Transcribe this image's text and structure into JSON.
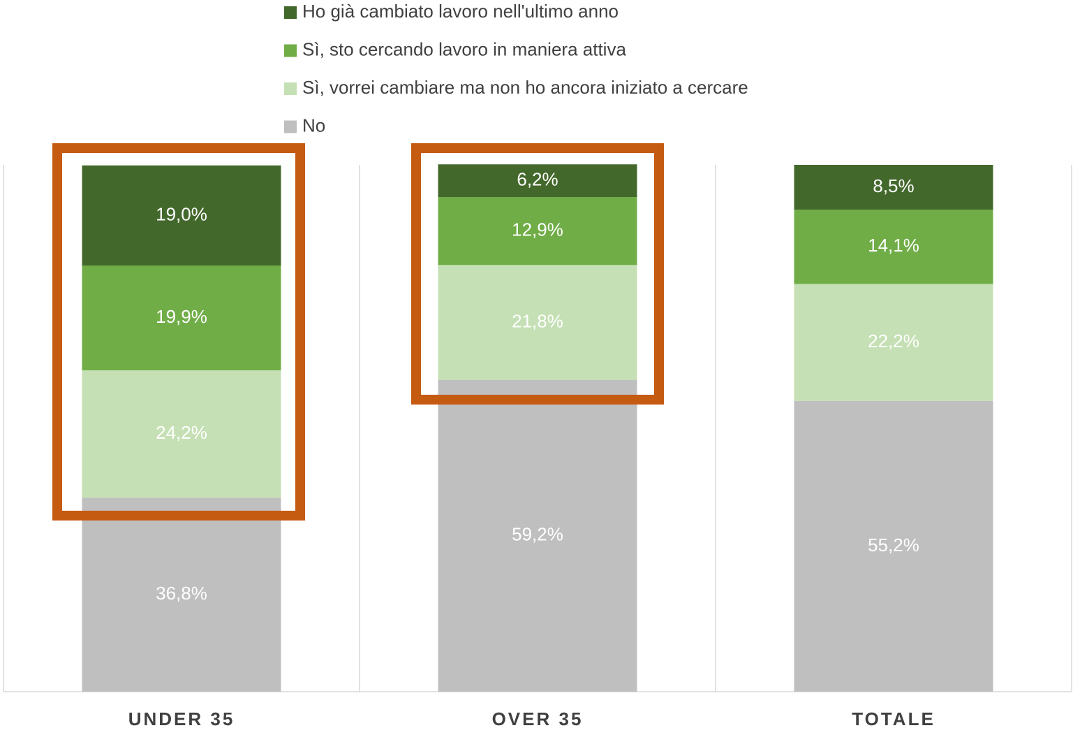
{
  "chart_data": {
    "type": "stacked_bar",
    "categories": [
      "UNDER 35",
      "OVER 35",
      "TOTALE"
    ],
    "ylim": [
      0,
      100
    ],
    "series": [
      {
        "name": "No",
        "color": "#bfbfbf",
        "values": [
          36.8,
          59.2,
          55.2
        ],
        "value_labels": [
          "36,8%",
          "59,2%",
          "55,2%"
        ]
      },
      {
        "name": "Sì, vorrei cambiare ma non ho ancora iniziato a cercare",
        "color": "#c5e0b4",
        "values": [
          24.2,
          21.8,
          22.2
        ],
        "value_labels": [
          "24,2%",
          "21,8%",
          "22,2%"
        ]
      },
      {
        "name": "Sì, sto cercando lavoro in maniera attiva",
        "color": "#70ad47",
        "values": [
          19.9,
          12.9,
          14.1
        ],
        "value_labels": [
          "19,9%",
          "12,9%",
          "14,1%"
        ]
      },
      {
        "name": "Ho già cambiato lavoro nell'ultimo anno",
        "color": "#43682b",
        "values": [
          19.0,
          6.2,
          8.5
        ],
        "value_labels": [
          "19,0%",
          "6,2%",
          "8,5%"
        ]
      }
    ]
  }
}
